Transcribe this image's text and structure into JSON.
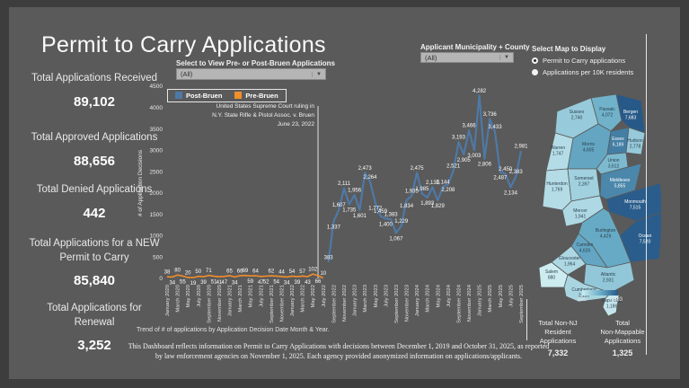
{
  "title": "Permit to Carry Applications",
  "stats": [
    {
      "label": "Total Applications Received",
      "value": "89,102"
    },
    {
      "label": "Total Approved Applications",
      "value": "88,656"
    },
    {
      "label": "Total Denied Applications",
      "value": "442"
    },
    {
      "label": "Total Applications for a NEW Permit to Carry",
      "value": "85,840"
    },
    {
      "label": "Total Applications for Renewal",
      "value": "3,252"
    }
  ],
  "filters": {
    "bruen": {
      "label": "Select to View Pre- or Post-Bruen Applications",
      "value": "(All)"
    },
    "municipality": {
      "label": "Applicant Municipality + County",
      "value": "(All)"
    },
    "map_display": {
      "label": "Select Map to Display",
      "options": [
        {
          "label": "Permit to Carry applications",
          "selected": true
        },
        {
          "label": "Applications per 10K residents",
          "selected": false
        }
      ]
    }
  },
  "chart_data": {
    "type": "line",
    "ylabel": "# of Application Decisions",
    "ylim": [
      0,
      4500
    ],
    "ytick_step": 500,
    "tick_step": 2,
    "caption": "Trend of # of applications by Application Decision Date Month & Year.",
    "annotation": {
      "lines": [
        "United States Supreme Court ruling in",
        "N.Y. State Rifle & Pistol Assoc. v. Bruen",
        "June 23, 2022"
      ],
      "month_index": 29
    },
    "months": [
      "January 2020",
      "February 2020",
      "March 2020",
      "April 2020",
      "May 2020",
      "June 2020",
      "July 2020",
      "August 2020",
      "September 2020",
      "October 2020",
      "November 2020",
      "December 2020",
      "January 2021",
      "February 2021",
      "March 2021",
      "April 2021",
      "May 2021",
      "June 2021",
      "July 2021",
      "August 2021",
      "September 2021",
      "October 2021",
      "November 2021",
      "December 2021",
      "January 2022",
      "February 2022",
      "March 2022",
      "April 2022",
      "May 2022",
      "June 2022",
      "July 2022",
      "August 2022",
      "September 2022",
      "October 2022",
      "November 2022",
      "December 2022",
      "January 2023",
      "February 2023",
      "March 2023",
      "April 2023",
      "May 2023",
      "June 2023",
      "July 2023",
      "August 2023",
      "September 2023",
      "October 2023",
      "November 2023",
      "December 2023",
      "January 2024",
      "February 2024",
      "March 2024",
      "April 2024",
      "May 2024",
      "June 2024",
      "July 2024",
      "August 2024",
      "September 2024",
      "October 2024",
      "November 2024",
      "December 2024",
      "January 2025",
      "February 2025",
      "March 2025",
      "April 2025",
      "May 2025",
      "June 2025",
      "July 2025",
      "August 2025",
      "September 2025"
    ],
    "series": [
      {
        "name": "Pre-Bruen",
        "color": "#f28e2b",
        "start": 0,
        "values": [
          38,
          34,
          80,
          55,
          20,
          19,
          50,
          39,
          71,
          51,
          41,
          47,
          65,
          34,
          66,
          69,
          59,
          64,
          47,
          52,
          62,
          54,
          44,
          34,
          54,
          39,
          57,
          43,
          102,
          66,
          10
        ]
      },
      {
        "name": "Post-Bruen",
        "color": "#4e79a7",
        "start": 31,
        "values": [
          383,
          1337,
          1607,
          2111,
          1735,
          1956,
          1601,
          2473,
          2264,
          1772,
          1459,
          1400,
          1383,
          1067,
          1229,
          1834,
          1935,
          2475,
          1985,
          1893,
          2135,
          1829,
          2144,
          2208,
          2521,
          3193,
          2905,
          3466,
          3003,
          4282,
          2806,
          3736,
          3433,
          2487,
          2450,
          2134,
          2383,
          2981
        ]
      }
    ]
  },
  "map": {
    "legend": {
      "min": "880",
      "max": "7,683"
    },
    "counties": [
      {
        "name": "Sussex",
        "value": 2740
      },
      {
        "name": "Passaic",
        "value": 4072
      },
      {
        "name": "Bergen",
        "value": 7683
      },
      {
        "name": "Warren",
        "value": 1747
      },
      {
        "name": "Morris",
        "value": 4605
      },
      {
        "name": "Essex",
        "value": 6189
      },
      {
        "name": "Hudson",
        "value": 2778
      },
      {
        "name": "Union",
        "value": 3612
      },
      {
        "name": "Hunterdon",
        "value": 1769
      },
      {
        "name": "Somerset",
        "value": 2397
      },
      {
        "name": "Middlesex",
        "value": 5855
      },
      {
        "name": "Mercer",
        "value": 1941
      },
      {
        "name": "Monmouth",
        "value": 7515
      },
      {
        "name": "Burlington",
        "value": 4429
      },
      {
        "name": "Camden",
        "value": 4626
      },
      {
        "name": "Ocean",
        "value": 7520
      },
      {
        "name": "Gloucester",
        "value": 1964
      },
      {
        "name": "Salem",
        "value": 880
      },
      {
        "name": "Atlantic",
        "value": 2931
      },
      {
        "name": "Cumberland",
        "value": 2116
      },
      {
        "name": "Cape May",
        "value": 1186
      }
    ]
  },
  "totals": [
    {
      "label1": "Total Non-NJ",
      "label2": "Resident",
      "label3": "Applications",
      "value": "7,332"
    },
    {
      "label1": "Total",
      "label2": "Non-Mappable",
      "label3": "Applications",
      "value": "1,325"
    }
  ],
  "footer": "This Dashboard reflects information on Permit to Carry Applications with decisions between December 1, 2019 and October 31, 2025, as reported by law enforcement agencies on November 1, 2025. Each agency provided anonymized information on applications/applicants."
}
